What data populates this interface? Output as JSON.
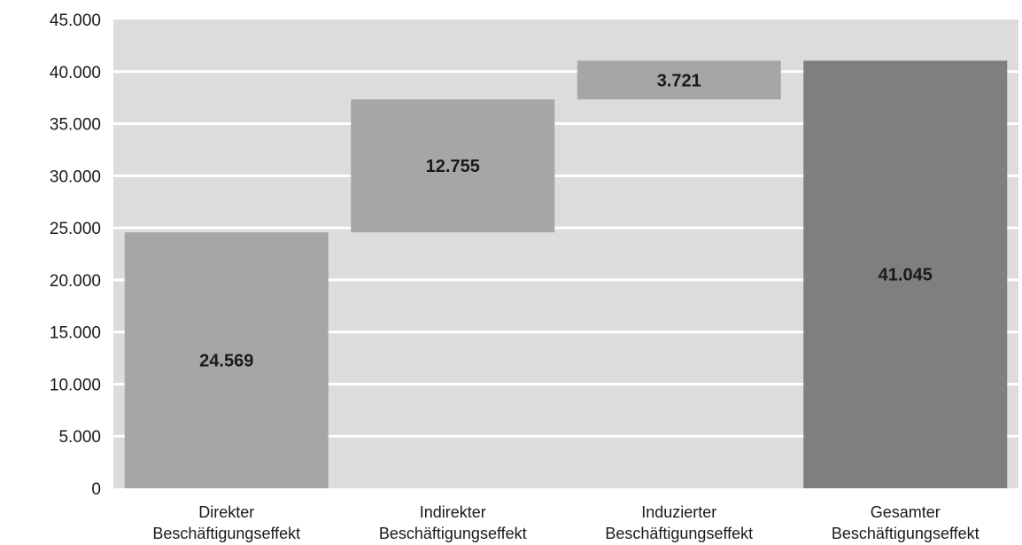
{
  "chart_data": {
    "type": "bar",
    "subtype": "waterfall",
    "title": "",
    "xlabel": "",
    "ylabel": "",
    "ylim": [
      0,
      45000
    ],
    "yticks": [
      0,
      5000,
      10000,
      15000,
      20000,
      25000,
      30000,
      35000,
      40000,
      45000
    ],
    "ytick_labels": [
      "0",
      "5.000",
      "10.000",
      "15.000",
      "20.000",
      "25.000",
      "30.000",
      "35.000",
      "40.000",
      "45.000"
    ],
    "grid": true,
    "legend": "none",
    "categories": [
      [
        "Direkter",
        "Beschäftigungseffekt"
      ],
      [
        "Indirekter",
        "Beschäftigungseffekt"
      ],
      [
        "Induzierter",
        "Beschäftigungseffekt"
      ],
      [
        "Gesamter",
        "Beschäftigungseffekt"
      ]
    ],
    "bars": [
      {
        "base": 0,
        "value": 24569,
        "label": "24.569",
        "kind": "increment"
      },
      {
        "base": 24569,
        "value": 12755,
        "label": "12.755",
        "kind": "increment"
      },
      {
        "base": 37324,
        "value": 3721,
        "label": "3.721",
        "kind": "increment"
      },
      {
        "base": 0,
        "value": 41045,
        "label": "41.045",
        "kind": "total"
      }
    ],
    "colors": {
      "plot_background": "#dcdcdc",
      "gridline": "#ffffff",
      "increment": "#a6a6a6",
      "total": "#7f7f7f"
    }
  }
}
